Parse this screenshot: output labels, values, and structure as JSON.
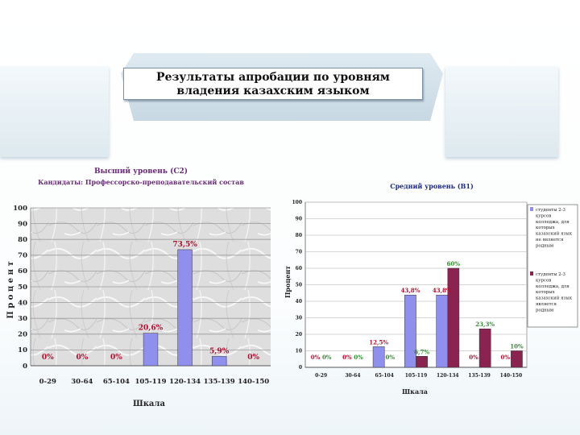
{
  "slide": {
    "title_line1": "Результаты апробации по уровням",
    "title_line2": "владения казахским языком"
  },
  "colors": {
    "bar_blue": "#8f90ee",
    "bar_maroon": "#8b2351",
    "label_red": "#b01030",
    "label_green": "#2e8b2e",
    "title_purple": "#6b2a7a",
    "title_blue": "#1e2a8a"
  },
  "chart_data": [
    {
      "type": "bar",
      "title": "Высший уровень (С2)",
      "subtitle": "Кандидаты: Профессорско-преподавательский состав",
      "xlabel": "Шкала",
      "ylabel": "П р о ц е н т",
      "ylim": [
        0,
        100
      ],
      "yticks": [
        "0",
        "10",
        "20",
        "30",
        "40",
        "50",
        "60",
        "70",
        "80",
        "90",
        "100"
      ],
      "grid": true,
      "categories": [
        "0-29",
        "30-64",
        "65-104",
        "105-119",
        "120-134",
        "135-139",
        "140-150"
      ],
      "series": [
        {
          "values": [
            0,
            0,
            0,
            20.6,
            73.5,
            5.9,
            0
          ],
          "labels": [
            "0%",
            "0%",
            "0%",
            "20,6%",
            "73,5%",
            "5,9%",
            "0%"
          ]
        }
      ]
    },
    {
      "type": "bar",
      "title": "Средний уровень (В1)",
      "xlabel": "Шкала",
      "ylabel": "Процент",
      "ylim": [
        0,
        100
      ],
      "yticks": [
        "0",
        "10",
        "20",
        "30",
        "40",
        "50",
        "60",
        "70",
        "80",
        "90",
        "100"
      ],
      "grid": true,
      "legend_position": "right",
      "categories": [
        "0-29",
        "30-64",
        "65-104",
        "105-119",
        "120-134",
        "135-139",
        "140-150"
      ],
      "series": [
        {
          "name": "студенты 2-3 курсов колледжа, для которых казахский язык не является родным",
          "values": [
            0,
            0,
            12.5,
            43.8,
            43.8,
            0,
            0
          ],
          "labels": [
            "0%",
            "0%",
            "12,5%",
            "43,8%",
            "43,8%",
            "0%",
            "0%"
          ]
        },
        {
          "name": "студенты 2-3 курсов колледжа, для которых казахский язык является родным",
          "values": [
            0,
            0,
            0,
            6.7,
            60,
            23.3,
            10
          ],
          "labels": [
            "0%",
            "0%",
            "0%",
            "6,7%",
            "60%",
            "23,3%",
            "10%"
          ]
        }
      ]
    }
  ]
}
